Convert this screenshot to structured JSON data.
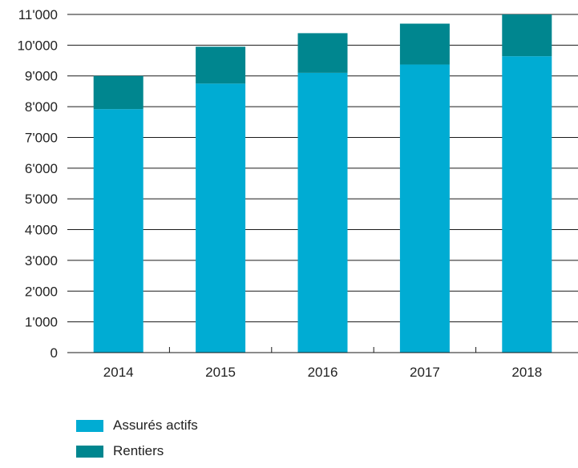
{
  "chart_data": {
    "type": "bar",
    "stacked": true,
    "categories": [
      "2014",
      "2015",
      "2016",
      "2017",
      "2018"
    ],
    "series": [
      {
        "name": "Assurés actifs",
        "color": "#00acd3",
        "values": [
          7920,
          8750,
          9100,
          9370,
          9640
        ]
      },
      {
        "name": "Rentiers",
        "color": "#00868f",
        "values": [
          1080,
          1200,
          1290,
          1330,
          1360
        ]
      }
    ],
    "y_ticks": [
      "0",
      "1'000",
      "2'000",
      "3'000",
      "4'000",
      "5'000",
      "6'000",
      "7'000",
      "8'000",
      "9'000",
      "10'000",
      "11'000"
    ],
    "ylim": [
      0,
      11000
    ],
    "grid": true,
    "legend_position": "bottom-left"
  }
}
